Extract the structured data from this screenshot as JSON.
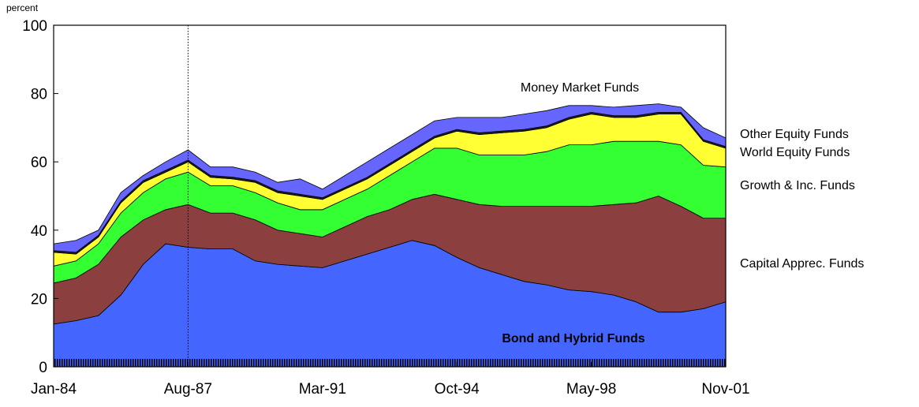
{
  "chart_data": {
    "type": "stacked_area",
    "y_label": "percent",
    "categories": [
      "Jan-84",
      null,
      null,
      null,
      null,
      null,
      "Aug-87",
      null,
      null,
      null,
      null,
      null,
      "Mar-91",
      null,
      null,
      null,
      null,
      null,
      "Oct-94",
      null,
      null,
      null,
      null,
      null,
      "May-98",
      null,
      null,
      null,
      null,
      null,
      "Nov-01"
    ],
    "series": [
      {
        "name": "Bond and Hybrid Funds",
        "color": "#4466ff",
        "values": [
          12.5,
          13.5,
          15,
          21,
          30,
          36,
          35,
          34.5,
          34.5,
          31,
          30,
          29.5,
          29,
          31,
          33,
          35,
          37,
          35.5,
          32,
          29,
          27,
          25,
          24,
          22.5,
          22,
          21,
          19,
          16,
          16,
          17,
          19
        ]
      },
      {
        "name": "Capital Apprec. Funds",
        "color": "#8b3f3f",
        "values": [
          12,
          12.5,
          15,
          17,
          13,
          10,
          12.5,
          10.5,
          10.5,
          12,
          10,
          9.5,
          9,
          10,
          11,
          11,
          12,
          15,
          17,
          18.5,
          20,
          22,
          23,
          24.5,
          25,
          26.5,
          29,
          34,
          31,
          26.5,
          24.5
        ]
      },
      {
        "name": "Growth & Inc. Funds",
        "color": "#33ff33",
        "values": [
          5,
          5,
          6,
          7,
          8,
          9,
          9.5,
          8,
          8,
          8,
          8,
          7,
          8,
          8,
          8,
          10,
          11,
          13.5,
          15,
          14.5,
          15,
          15,
          16,
          18,
          18,
          18.5,
          18,
          16,
          18,
          15.5,
          15
        ]
      },
      {
        "name": "World Equity Funds",
        "color": "#ffff33",
        "values": [
          4,
          2,
          2,
          3,
          3,
          2,
          3,
          2.5,
          2,
          3,
          3,
          4,
          3,
          3,
          3,
          3,
          3,
          3,
          5,
          6,
          6.5,
          7,
          7,
          7.5,
          9,
          7,
          7,
          8,
          9,
          7,
          5.5
        ]
      },
      {
        "name": "Other Equity Funds",
        "color": "#222222",
        "values": [
          0.5,
          0.5,
          0.5,
          0.5,
          0.5,
          0.5,
          0.5,
          0.5,
          0.5,
          0.5,
          0.5,
          0.5,
          0.5,
          0.5,
          0.5,
          0.5,
          0.5,
          0.5,
          0.5,
          0.5,
          0.5,
          0.5,
          0.5,
          0.5,
          0.5,
          0.5,
          0.5,
          0.5,
          0.5,
          0.5,
          0.5
        ]
      },
      {
        "name": "Money Market Funds",
        "color": "#6666ff",
        "values": [
          2,
          3.5,
          1.5,
          2.5,
          1.5,
          2.5,
          3,
          2.5,
          3,
          2.5,
          2.5,
          4.5,
          2.5,
          3.5,
          4.5,
          4.5,
          4.5,
          4.5,
          3.5,
          4.5,
          4,
          4.5,
          4.5,
          3.5,
          2,
          2.5,
          3,
          2.5,
          1.5,
          3.5,
          2.5
        ]
      }
    ],
    "ylim": [
      0,
      100
    ],
    "yticks": [
      0,
      20,
      40,
      60,
      80,
      100
    ]
  }
}
